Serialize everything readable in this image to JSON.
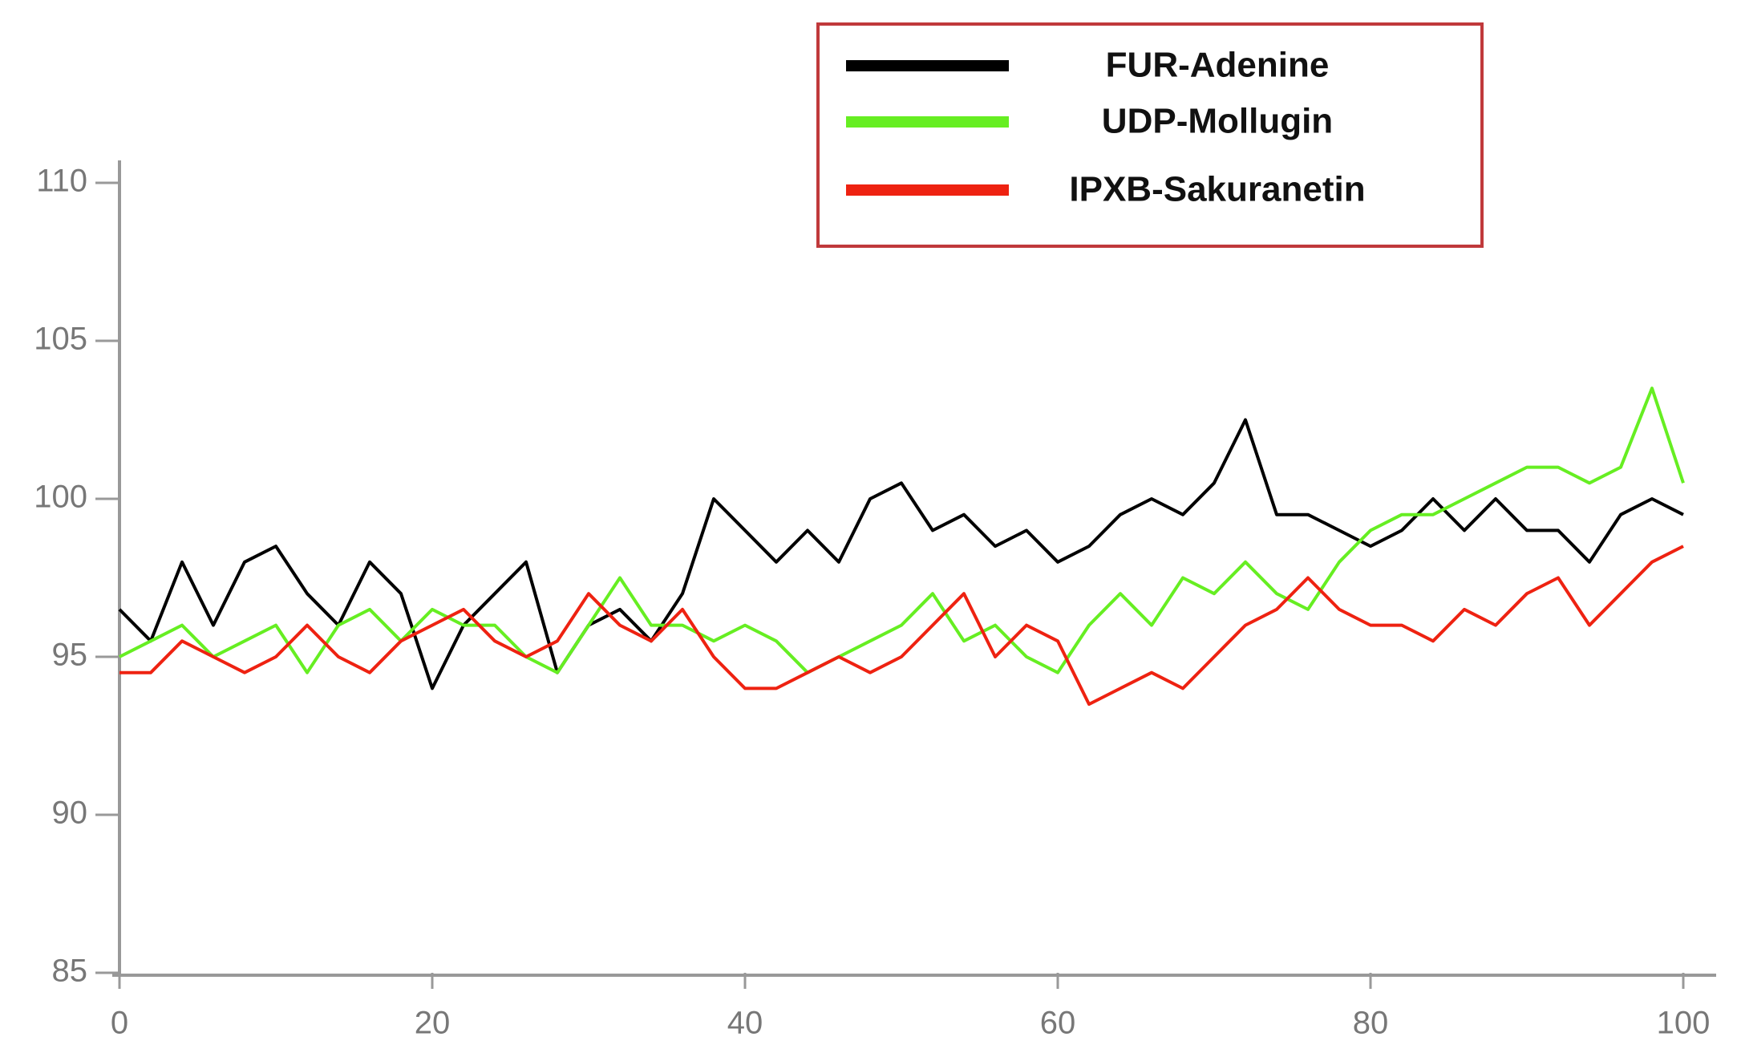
{
  "chart_data": {
    "type": "line",
    "x": [
      0,
      2,
      4,
      6,
      8,
      10,
      12,
      14,
      16,
      18,
      20,
      22,
      24,
      26,
      28,
      30,
      32,
      34,
      36,
      38,
      40,
      42,
      44,
      46,
      48,
      50,
      52,
      54,
      56,
      58,
      60,
      62,
      64,
      66,
      68,
      70,
      72,
      74,
      76,
      78,
      80,
      82,
      84,
      86,
      88,
      90,
      92,
      94,
      96,
      98,
      100
    ],
    "series": [
      {
        "name": "FUR-Adenine",
        "color": "#000000",
        "values": [
          96.5,
          95.5,
          98,
          96,
          98,
          98.5,
          97,
          96,
          98,
          97,
          94,
          96,
          97,
          98,
          94.5,
          96,
          96.5,
          95.5,
          97,
          100,
          99,
          98,
          99,
          98,
          100,
          100.5,
          99,
          99.5,
          98.5,
          99,
          98,
          98.5,
          99.5,
          100,
          99.5,
          100.5,
          102.5,
          99.5,
          99.5,
          99,
          98.5,
          99,
          100,
          99,
          100,
          99,
          99,
          98,
          99.5,
          100,
          99.5
        ]
      },
      {
        "name": "UDP-Mollugin",
        "color": "#66ee22",
        "values": [
          95,
          95.5,
          96,
          95,
          95.5,
          96,
          94.5,
          96,
          96.5,
          95.5,
          96.5,
          96,
          96,
          95,
          94.5,
          96,
          97.5,
          96,
          96,
          95.5,
          96,
          95.5,
          94.5,
          95,
          95.5,
          96,
          97,
          95.5,
          96,
          95,
          94.5,
          96,
          97,
          96,
          97.5,
          97,
          98,
          97,
          96.5,
          98,
          99,
          99.5,
          99.5,
          100,
          100.5,
          101,
          101,
          100.5,
          101,
          103.5,
          100.5
        ]
      },
      {
        "name": "IPXB-Sakuranetin",
        "color": "#ee2211",
        "values": [
          94.5,
          94.5,
          95.5,
          95,
          94.5,
          95,
          96,
          95,
          94.5,
          95.5,
          96,
          96.5,
          95.5,
          95,
          95.5,
          97,
          96,
          95.5,
          96.5,
          95,
          94,
          94,
          94.5,
          95,
          94.5,
          95,
          96,
          97,
          95,
          96,
          95.5,
          93.5,
          94,
          94.5,
          94,
          95,
          96,
          96.5,
          97.5,
          96.5,
          96,
          96,
          95.5,
          96.5,
          96,
          97,
          97.5,
          96,
          97,
          98,
          98.5
        ]
      }
    ],
    "xlim": [
      0,
      100
    ],
    "xticks": [
      0,
      20,
      40,
      60,
      80,
      100
    ],
    "ylim": [
      85,
      110
    ],
    "yticks": [
      85,
      90,
      95,
      100,
      105,
      110
    ]
  }
}
